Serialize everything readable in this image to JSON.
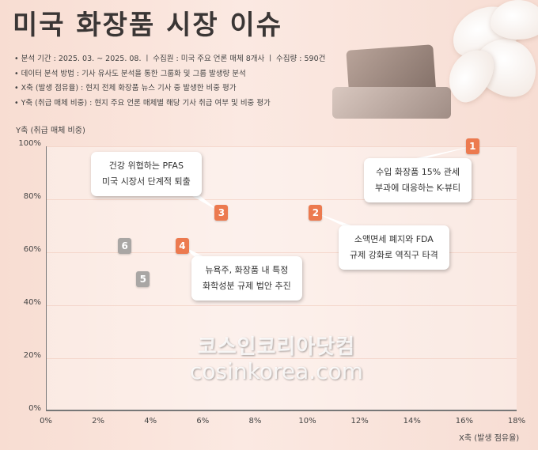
{
  "title": "미국 화장품 시장 이슈",
  "notes": [
    "• 분석 기간 : 2025. 03. ~ 2025. 08.  ㅣ  수집원 : 미국 주요 언론 매체 8개사  ㅣ  수집량 : 590건",
    "• 데이터 분석 방법 : 기사 유사도 분석을 통한 그룹화 및 그룹 발생량 분석",
    "• X축 (발생 점유율) : 현지 전체 화장품 뉴스 기사 중 발생한 비중 평가",
    "• Y축 (취급 매체 비중) : 현지 주요 언론 매체별 해당 기사 취급 여부 및 비중 평가"
  ],
  "watermark": {
    "korean": "코스인코리아닷컴",
    "url": "cosinkorea.com"
  },
  "colors": {
    "highlight": "#ec7a4f",
    "muted": "#a9a6a4"
  },
  "chart_data": {
    "type": "scatter",
    "xlabel": "X축 (발생 점유율)",
    "ylabel": "Y축 (취급 매체 비중)",
    "xlim": [
      0,
      18
    ],
    "ylim": [
      0,
      100
    ],
    "xticks": [
      "0%",
      "2%",
      "4%",
      "6%",
      "8%",
      "10%",
      "12%",
      "14%",
      "16%",
      "18%"
    ],
    "yticks": [
      "0%",
      "20%",
      "40%",
      "60%",
      "80%",
      "100%"
    ],
    "grid": true,
    "points": [
      {
        "label": "1",
        "x": 16.3,
        "y": 100,
        "highlight": true,
        "callout": [
          "수입 화장품 15% 관세",
          "부과에 대응하는 K-뷰티"
        ]
      },
      {
        "label": "2",
        "x": 10.3,
        "y": 75,
        "highlight": true,
        "callout": [
          "소액면세 폐지와 FDA",
          "규제 강화로 역직구 타격"
        ]
      },
      {
        "label": "3",
        "x": 6.7,
        "y": 75,
        "highlight": true,
        "callout": [
          "건강 위협하는 PFAS",
          "미국 시장서 단계적 퇴출"
        ]
      },
      {
        "label": "4",
        "x": 5.2,
        "y": 62.5,
        "highlight": true,
        "callout": [
          "뉴욕주, 화장품 내 특정",
          "화학성분 규제 법안 추진"
        ]
      },
      {
        "label": "5",
        "x": 3.7,
        "y": 50,
        "highlight": false,
        "callout": null
      },
      {
        "label": "6",
        "x": 3.0,
        "y": 62.5,
        "highlight": false,
        "callout": null
      }
    ]
  }
}
